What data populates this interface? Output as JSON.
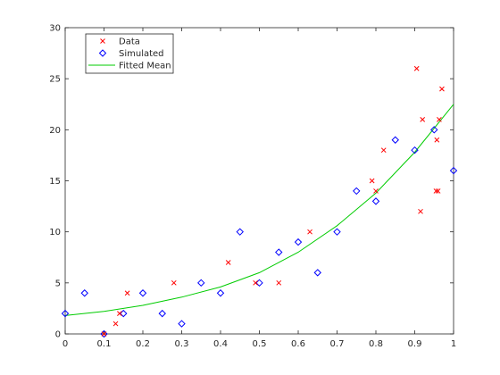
{
  "chart_data": {
    "type": "scatter",
    "title": "",
    "xlabel": "",
    "ylabel": "",
    "xlim": [
      0,
      1
    ],
    "ylim": [
      0,
      30
    ],
    "x_ticks": [
      "0",
      "0.1",
      "0.2",
      "0.3",
      "0.4",
      "0.5",
      "0.6",
      "0.7",
      "0.8",
      "0.9",
      "1"
    ],
    "y_ticks": [
      "0",
      "5",
      "10",
      "15",
      "20",
      "25",
      "30"
    ],
    "grid": false,
    "legend_position": "top-left",
    "series": [
      {
        "name": "Data",
        "marker": "x",
        "color": "#ff0000",
        "points": [
          [
            0.1,
            0
          ],
          [
            0.13,
            1
          ],
          [
            0.14,
            2
          ],
          [
            0.16,
            4
          ],
          [
            0.28,
            5
          ],
          [
            0.42,
            7
          ],
          [
            0.49,
            5
          ],
          [
            0.55,
            5
          ],
          [
            0.63,
            10
          ],
          [
            0.79,
            15
          ],
          [
            0.8,
            14
          ],
          [
            0.82,
            18
          ],
          [
            0.905,
            26
          ],
          [
            0.915,
            12
          ],
          [
            0.92,
            21
          ],
          [
            0.955,
            14
          ],
          [
            0.957,
            19
          ],
          [
            0.96,
            14
          ],
          [
            0.963,
            21
          ],
          [
            0.97,
            24
          ]
        ]
      },
      {
        "name": "Simulated",
        "marker": "diamond",
        "color": "#0000ff",
        "points": [
          [
            0,
            2
          ],
          [
            0.05,
            4
          ],
          [
            0.1,
            0
          ],
          [
            0.15,
            2
          ],
          [
            0.2,
            4
          ],
          [
            0.25,
            2
          ],
          [
            0.3,
            1
          ],
          [
            0.35,
            5
          ],
          [
            0.4,
            4
          ],
          [
            0.45,
            10
          ],
          [
            0.5,
            5
          ],
          [
            0.55,
            8
          ],
          [
            0.6,
            9
          ],
          [
            0.65,
            6
          ],
          [
            0.7,
            10
          ],
          [
            0.75,
            14
          ],
          [
            0.8,
            13
          ],
          [
            0.85,
            19
          ],
          [
            0.9,
            18
          ],
          [
            0.95,
            20
          ],
          [
            1.0,
            16
          ]
        ]
      },
      {
        "name": "Fitted Mean",
        "type": "line",
        "color": "#00cc00",
        "points": [
          [
            0,
            1.8
          ],
          [
            0.1,
            2.2
          ],
          [
            0.2,
            2.8
          ],
          [
            0.3,
            3.6
          ],
          [
            0.4,
            4.6
          ],
          [
            0.5,
            6.0
          ],
          [
            0.6,
            8.0
          ],
          [
            0.7,
            10.6
          ],
          [
            0.8,
            13.8
          ],
          [
            0.9,
            17.8
          ],
          [
            1.0,
            22.5
          ]
        ]
      }
    ]
  }
}
